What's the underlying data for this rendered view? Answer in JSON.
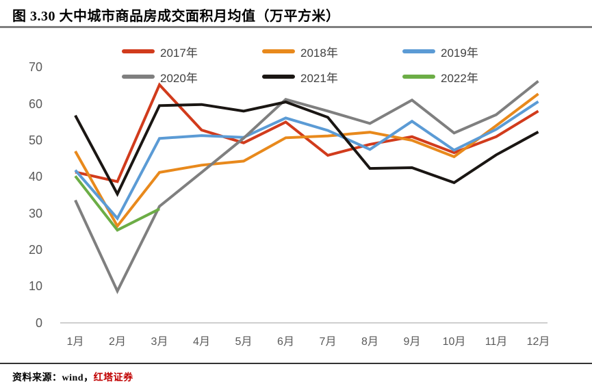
{
  "title": "图 3.30 大中城市商品房成交面积月均值（万平方米）",
  "footer": {
    "prefix": "资料来源：wind，",
    "source": "红塔证券",
    "source_color": "#C00000"
  },
  "chart_data": {
    "type": "line",
    "title": "大中城市商品房成交面积月均值（万平方米）",
    "unit": "万平方米",
    "categories": [
      "1月",
      "2月",
      "3月",
      "4月",
      "5月",
      "6月",
      "7月",
      "8月",
      "9月",
      "10月",
      "11月",
      "12月"
    ],
    "y_ticks": [
      0,
      10,
      20,
      30,
      40,
      50,
      60,
      70
    ],
    "ylim": [
      0,
      70
    ],
    "grid": false,
    "legend_position": "top",
    "axis_color": "#bfbfbf",
    "tick_label_color": "#595959",
    "series": [
      {
        "name": "2017年",
        "color": "#D13B1C",
        "values": [
          41.3,
          38.7,
          65.2,
          52.8,
          49.3,
          55.0,
          45.9,
          48.9,
          51.0,
          46.6,
          51.0,
          58.0
        ]
      },
      {
        "name": "2018年",
        "color": "#E8891C",
        "values": [
          47.0,
          26.5,
          41.2,
          43.2,
          44.3,
          50.7,
          51.2,
          52.2,
          50.0,
          45.5,
          54.0,
          62.7
        ]
      },
      {
        "name": "2019年",
        "color": "#5B9BD5",
        "values": [
          41.8,
          28.6,
          50.5,
          51.3,
          50.8,
          56.1,
          52.7,
          47.5,
          55.2,
          47.3,
          53.0,
          60.6
        ]
      },
      {
        "name": "2020年",
        "color": "#7F7F7F",
        "values": [
          33.6,
          8.7,
          31.9,
          41.2,
          50.6,
          61.2,
          58.0,
          54.6,
          61.0,
          52.0,
          57.0,
          66.2
        ]
      },
      {
        "name": "2021年",
        "color": "#1A1613",
        "values": [
          56.8,
          35.3,
          59.5,
          59.8,
          58.0,
          60.5,
          56.3,
          42.3,
          42.5,
          38.4,
          46.0,
          52.3
        ]
      },
      {
        "name": "2022年",
        "color": "#6CAD46",
        "values": [
          40.2,
          25.4,
          31.2,
          null,
          null,
          null,
          null,
          null,
          null,
          null,
          null,
          null
        ]
      }
    ]
  }
}
